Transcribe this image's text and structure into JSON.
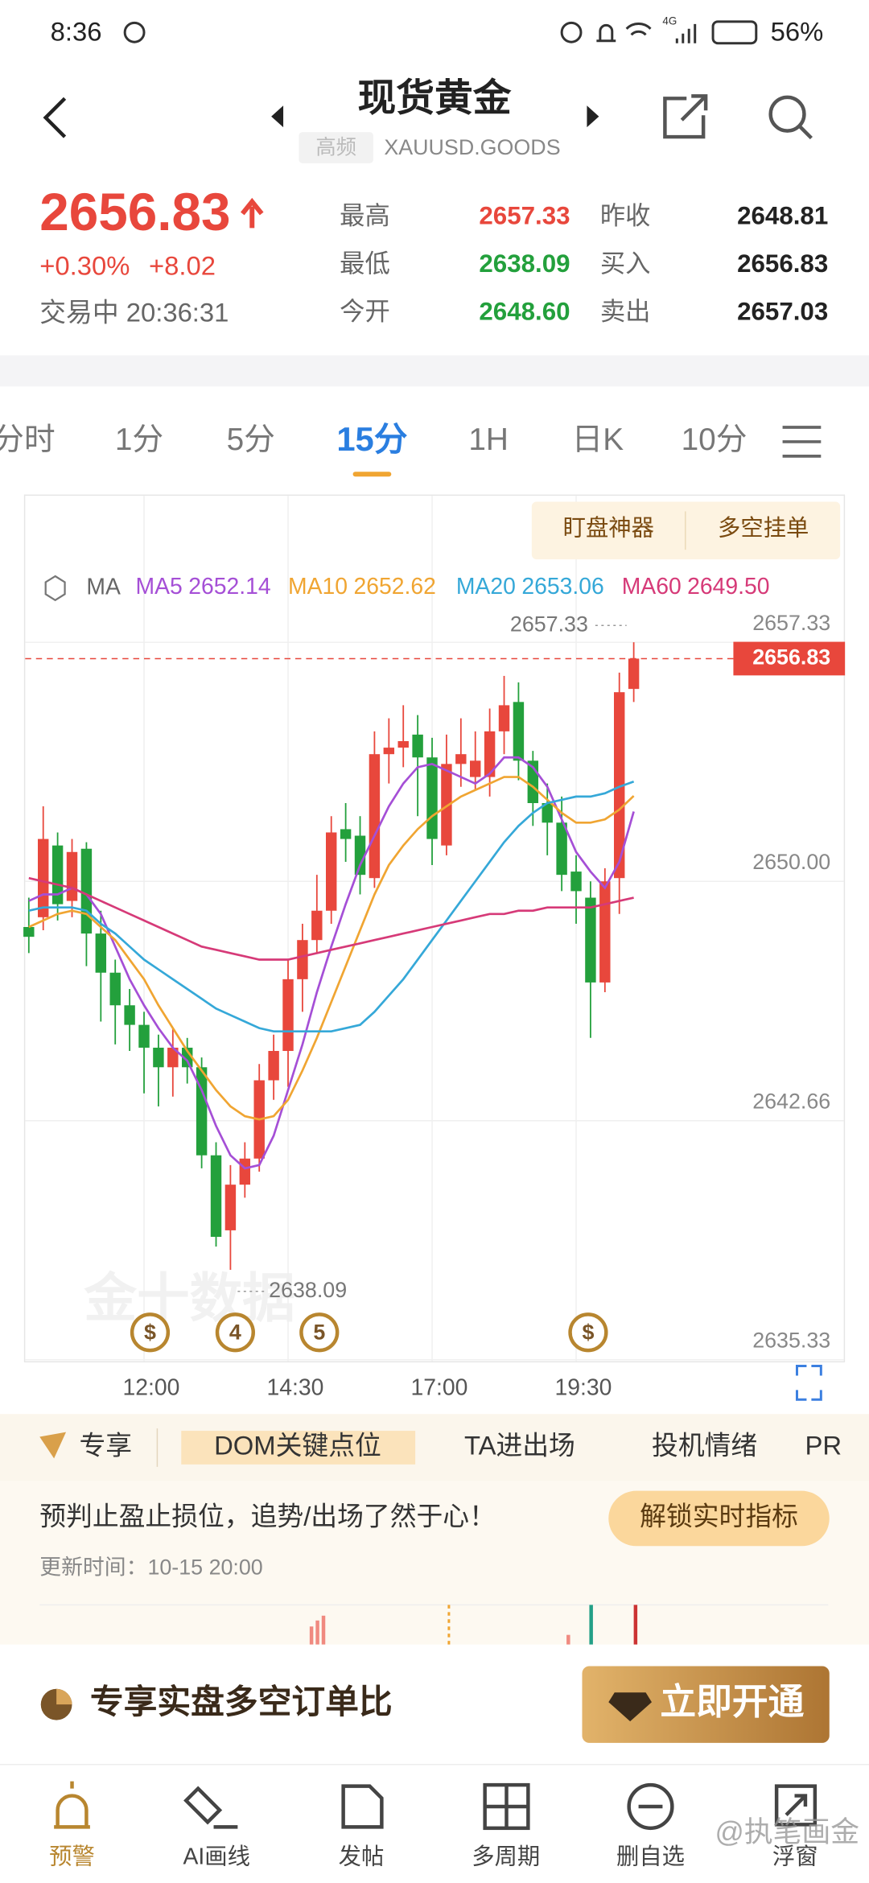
{
  "status_bar": {
    "time": "8:36",
    "network": "4G",
    "battery": "56%"
  },
  "header": {
    "title": "现货黄金",
    "badge": "高频",
    "symbol": "XAUUSD.GOODS"
  },
  "quote": {
    "price": "2656.83",
    "change_pct": "+0.30%",
    "change": "+8.02",
    "status": "交易中 20:36:31",
    "stats": [
      {
        "label": "最高",
        "value": "2657.33"
      },
      {
        "label": "昨收",
        "value": "2648.81"
      },
      {
        "label": "最低",
        "value": "2638.09"
      },
      {
        "label": "买入",
        "value": "2656.83"
      },
      {
        "label": "今开",
        "value": "2648.60"
      },
      {
        "label": "卖出",
        "value": "2657.03"
      }
    ]
  },
  "period_tabs": [
    "分时",
    "1分",
    "5分",
    "15分",
    "1H",
    "日K",
    "10分"
  ],
  "chart_buttons": [
    "盯盘神器",
    "多空挂单"
  ],
  "chart_data": {
    "type": "candlestick",
    "indicator": "MA",
    "categories": [
      null,
      null,
      null,
      null,
      null,
      null,
      null,
      null,
      "12:00",
      null,
      null,
      null,
      null,
      null,
      null,
      null,
      null,
      null,
      "14:30",
      null,
      null,
      null,
      null,
      null,
      null,
      null,
      null,
      null,
      "17:00",
      null,
      null,
      null,
      null,
      null,
      null,
      null,
      null,
      null,
      "19:30",
      null,
      null,
      null,
      null
    ],
    "open": [
      2648.6,
      2648.9,
      2651.1,
      2649.4,
      2651.0,
      2648.4,
      2647.2,
      2646.2,
      2645.6,
      2644.9,
      2644.3,
      2644.9,
      2644.3,
      2641.6,
      2639.3,
      2640.7,
      2641.5,
      2643.9,
      2644.8,
      2647.0,
      2648.2,
      2649.1,
      2651.6,
      2651.4,
      2650.1,
      2653.9,
      2654.1,
      2654.5,
      2653.8,
      2651.1,
      2653.6,
      2653.2,
      2653.2,
      2654.6,
      2655.5,
      2653.7,
      2652.4,
      2651.8,
      2650.3,
      2649.5,
      2646.9,
      2650.1,
      2655.9
    ],
    "high": [
      2649.5,
      2652.3,
      2651.5,
      2651.3,
      2651.2,
      2649.1,
      2647.6,
      2646.7,
      2646.0,
      2645.3,
      2645.5,
      2645.2,
      2644.6,
      2642.0,
      2641.3,
      2642.0,
      2644.4,
      2645.3,
      2647.6,
      2648.7,
      2650.2,
      2652.0,
      2652.4,
      2652.0,
      2654.6,
      2655.0,
      2655.4,
      2655.1,
      2654.4,
      2654.5,
      2655.0,
      2654.6,
      2655.3,
      2656.3,
      2656.1,
      2654.0,
      2653.0,
      2652.6,
      2650.8,
      2650.0,
      2650.4,
      2656.4,
      2657.33
    ],
    "low": [
      2647.8,
      2648.5,
      2648.8,
      2648.9,
      2647.4,
      2645.7,
      2645.0,
      2644.8,
      2643.5,
      2643.1,
      2643.4,
      2643.8,
      2641.2,
      2638.8,
      2638.09,
      2640.3,
      2641.1,
      2643.3,
      2643.7,
      2646.0,
      2647.8,
      2648.7,
      2650.6,
      2649.6,
      2649.8,
      2653.0,
      2653.5,
      2652.0,
      2650.5,
      2650.8,
      2652.9,
      2652.8,
      2652.6,
      2653.9,
      2653.1,
      2651.7,
      2650.8,
      2649.7,
      2648.7,
      2645.2,
      2646.6,
      2649.0,
      2655.5
    ],
    "close": [
      2648.3,
      2651.3,
      2649.3,
      2650.9,
      2648.4,
      2647.2,
      2646.2,
      2645.6,
      2644.9,
      2644.3,
      2644.9,
      2644.3,
      2641.6,
      2639.1,
      2640.7,
      2641.5,
      2643.9,
      2644.8,
      2647.0,
      2648.2,
      2649.1,
      2651.5,
      2651.3,
      2650.2,
      2653.9,
      2654.1,
      2654.3,
      2653.8,
      2651.3,
      2653.6,
      2653.9,
      2653.7,
      2654.6,
      2655.4,
      2653.7,
      2652.4,
      2651.8,
      2650.2,
      2649.7,
      2646.9,
      2650.0,
      2655.8,
      2656.83
    ],
    "up_color": "#e8473c",
    "down_color": "#23a03c",
    "series": [
      {
        "name": "MA5",
        "color": "#a54fd6",
        "last_label": "2652.14",
        "values": [
          2649.4,
          2649.6,
          2649.6,
          2649.8,
          2649.6,
          2649.0,
          2648.0,
          2647.0,
          2646.2,
          2645.5,
          2644.9,
          2644.5,
          2643.6,
          2642.5,
          2641.6,
          2641.2,
          2641.3,
          2642.2,
          2643.6,
          2645.0,
          2646.6,
          2648.0,
          2649.3,
          2650.5,
          2651.4,
          2652.3,
          2653.0,
          2653.5,
          2653.6,
          2653.4,
          2653.2,
          2653.0,
          2653.3,
          2653.8,
          2653.8,
          2653.5,
          2652.9,
          2651.9,
          2650.9,
          2650.3,
          2649.8,
          2650.6,
          2652.14
        ]
      },
      {
        "name": "MA10",
        "color": "#f0a532",
        "last_label": "2652.62",
        "values": [
          2648.6,
          2648.8,
          2649.0,
          2649.1,
          2649.0,
          2648.6,
          2648.2,
          2647.6,
          2647.0,
          2646.2,
          2645.5,
          2644.8,
          2644.2,
          2643.6,
          2643.1,
          2642.8,
          2642.7,
          2642.8,
          2643.3,
          2644.2,
          2645.2,
          2646.3,
          2647.4,
          2648.5,
          2649.6,
          2650.5,
          2651.1,
          2651.6,
          2652.0,
          2652.3,
          2652.6,
          2652.8,
          2653.0,
          2653.2,
          2653.2,
          2652.9,
          2652.5,
          2652.1,
          2651.8,
          2651.8,
          2651.9,
          2652.2,
          2652.62
        ]
      },
      {
        "name": "MA20",
        "color": "#35a8d8",
        "last_label": "2653.06",
        "values": [
          2649.1,
          2649.2,
          2649.2,
          2649.2,
          2649.1,
          2648.7,
          2648.4,
          2648.0,
          2647.6,
          2647.3,
          2647.0,
          2646.7,
          2646.4,
          2646.1,
          2645.9,
          2645.7,
          2645.5,
          2645.4,
          2645.4,
          2645.4,
          2645.4,
          2645.4,
          2645.5,
          2645.6,
          2646.0,
          2646.5,
          2647.0,
          2647.6,
          2648.2,
          2648.8,
          2649.4,
          2650.0,
          2650.6,
          2651.2,
          2651.7,
          2652.1,
          2652.4,
          2652.5,
          2652.6,
          2652.6,
          2652.7,
          2652.9,
          2653.06
        ]
      },
      {
        "name": "MA60",
        "color": "#d63a78",
        "last_label": "2649.50",
        "values": [
          2650.1,
          2650.0,
          2649.9,
          2649.8,
          2649.6,
          2649.4,
          2649.2,
          2649.0,
          2648.8,
          2648.6,
          2648.4,
          2648.2,
          2648.0,
          2647.9,
          2647.8,
          2647.7,
          2647.6,
          2647.6,
          2647.6,
          2647.7,
          2647.8,
          2647.9,
          2648.0,
          2648.1,
          2648.2,
          2648.3,
          2648.4,
          2648.5,
          2648.6,
          2648.7,
          2648.8,
          2648.9,
          2649.0,
          2649.0,
          2649.1,
          2649.1,
          2649.2,
          2649.2,
          2649.2,
          2649.2,
          2649.3,
          2649.4,
          2649.5
        ]
      }
    ],
    "ylim": [
      2635.25,
      2661.75
    ],
    "yticks": [
      2657.33,
      {
        "value": 2650,
        "label": "2650.00"
      },
      2642.66,
      2635.33
    ],
    "grid": true,
    "last_price": {
      "value": 2656.83,
      "label": "2656.83"
    },
    "high_label": "2657.33",
    "low_label": "2638.09",
    "event_markers": [
      "$",
      "4",
      "5",
      "$"
    ],
    "watermark": "金十数据"
  },
  "feature_tabs": [
    "专享",
    "DOM关键点位",
    "TA进出场",
    "投机情绪",
    "PR"
  ],
  "promo": {
    "text": "预判止盈止损位，追势/出场了然于心！",
    "button": "解锁实时指标",
    "updated": "更新时间：10-15 20:00"
  },
  "banner": {
    "text": "专享实盘多空订单比",
    "button": "立即开通"
  },
  "nav": [
    "预警",
    "AI画线",
    "发帖",
    "多周期",
    "删自选",
    "浮窗"
  ],
  "overlay": "@执笔画金"
}
